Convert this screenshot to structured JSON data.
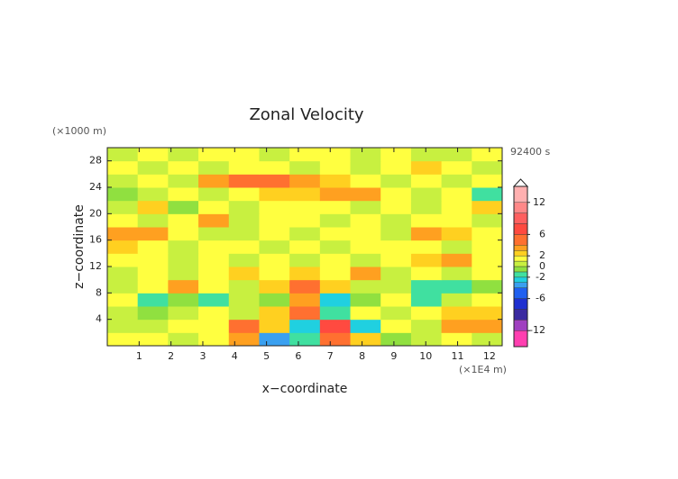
{
  "chart_data": {
    "type": "contour",
    "title": "Zonal Velocity",
    "xlabel": "x−coordinate",
    "ylabel": "z−coordinate",
    "x_unit": "(×1E4 m)",
    "y_unit": "(×1000 m)",
    "time_label": "92400 s",
    "xlim": [
      0,
      12.4
    ],
    "ylim": [
      0,
      30
    ],
    "xticks": [
      1,
      2,
      3,
      4,
      5,
      6,
      7,
      8,
      9,
      10,
      11,
      12
    ],
    "yticks": [
      4,
      8,
      12,
      16,
      20,
      24,
      28
    ],
    "field": [
      [
        1,
        1,
        0,
        1,
        3,
        -4,
        -2,
        4,
        2,
        -1,
        0,
        1,
        0
      ],
      [
        0,
        0,
        1,
        1,
        4,
        2,
        -3,
        6,
        -3,
        1,
        0,
        3,
        3
      ],
      [
        0,
        -1,
        0,
        1,
        0,
        2,
        4,
        -2,
        1,
        0,
        1,
        2,
        2
      ],
      [
        1,
        -2,
        -1,
        -2,
        0,
        -1,
        3,
        -3,
        -1,
        1,
        -2,
        0,
        1
      ],
      [
        0,
        1,
        3,
        1,
        0,
        2,
        5,
        2,
        0,
        0,
        -2,
        -2,
        -1
      ],
      [
        0,
        1,
        0,
        1,
        2,
        1,
        2,
        1,
        3,
        0,
        1,
        0,
        1
      ],
      [
        1,
        1,
        0,
        1,
        0,
        1,
        0,
        1,
        0,
        1,
        2,
        3,
        1
      ],
      [
        2,
        1,
        0,
        1,
        1,
        0,
        1,
        0,
        1,
        1,
        1,
        0,
        1
      ],
      [
        3,
        3,
        1,
        0,
        0,
        1,
        0,
        1,
        1,
        0,
        3,
        2,
        1
      ],
      [
        1,
        0,
        1,
        3,
        0,
        1,
        1,
        0,
        1,
        0,
        1,
        1,
        0
      ],
      [
        0,
        2,
        -1,
        1,
        0,
        1,
        1,
        1,
        0,
        1,
        0,
        1,
        2
      ],
      [
        -1,
        0,
        1,
        0,
        1,
        2,
        2,
        3,
        3,
        1,
        0,
        1,
        -2
      ],
      [
        0,
        1,
        0,
        3,
        4,
        4,
        3,
        2,
        1,
        0,
        1,
        0,
        1
      ],
      [
        1,
        0,
        1,
        0,
        1,
        1,
        0,
        1,
        0,
        1,
        2,
        1,
        0
      ],
      [
        0,
        1,
        0,
        1,
        1,
        0,
        1,
        1,
        0,
        1,
        0,
        0,
        1
      ]
    ],
    "colorbar": {
      "levels": [
        -15,
        -12,
        -10,
        -8,
        -6,
        -4,
        -3,
        -2,
        -1,
        0,
        1,
        2,
        3,
        4,
        6,
        8,
        10,
        12,
        15
      ],
      "colors": [
        "#ff3fb0",
        "#a040c0",
        "#3a2aa0",
        "#1e30d0",
        "#2060f0",
        "#3aa0f0",
        "#20d0e0",
        "#40e0a0",
        "#90e040",
        "#c8f040",
        "#ffff40",
        "#ffd020",
        "#ffa020",
        "#ff7030",
        "#ff4a40",
        "#ff6060",
        "#ff8888",
        "#ffb0b0"
      ],
      "ticks": [
        12,
        6,
        2,
        0,
        -2,
        -6,
        -12
      ]
    }
  }
}
